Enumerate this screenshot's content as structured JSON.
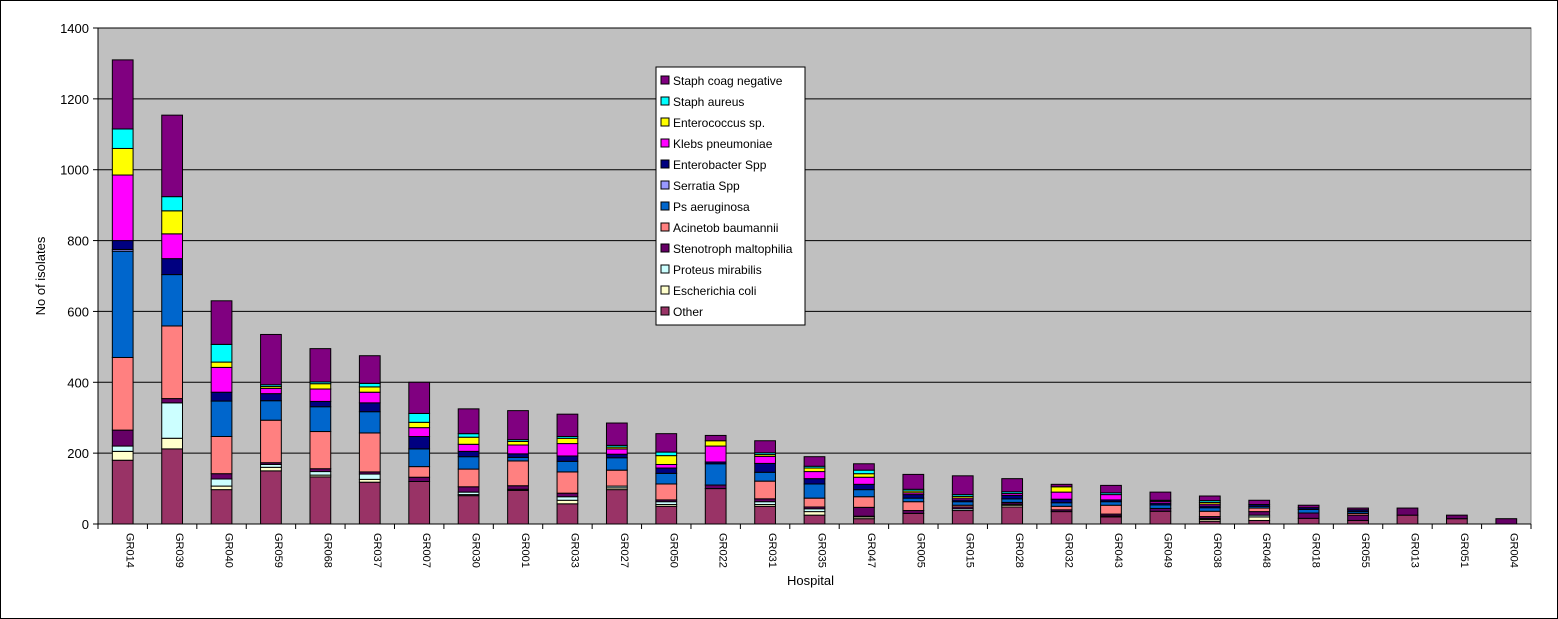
{
  "chart_data": {
    "type": "bar",
    "stacked": true,
    "xlabel": "Hospital",
    "ylabel": "No of isolates",
    "ylim": [
      0,
      1400
    ],
    "yticks": [
      0,
      200,
      400,
      600,
      800,
      1000,
      1200,
      1400
    ],
    "grid": true,
    "legend_position": "top-center",
    "plot_background": "#c0c0c0",
    "categories": [
      "GR014",
      "GR039",
      "GR040",
      "GR059",
      "GR068",
      "GR037",
      "GR007",
      "GR030",
      "GR001",
      "GR033",
      "GR027",
      "GR050",
      "GR022",
      "GR031",
      "GR035",
      "GR047",
      "GR005",
      "GR015",
      "GR028",
      "GR032",
      "GR043",
      "GR049",
      "GR038",
      "GR048",
      "GR018",
      "GR055",
      "GR013",
      "GR051",
      "GR004"
    ],
    "series": [
      {
        "name": "Other",
        "color": "#993366",
        "values": [
          180,
          212,
          97,
          150,
          133,
          118,
          120,
          80,
          95,
          57,
          97,
          50,
          100,
          50,
          25,
          15,
          30,
          38,
          48,
          35,
          20,
          36,
          8,
          10,
          16,
          10,
          25,
          15,
          0
        ]
      },
      {
        "name": "Escherichia coli",
        "color": "#ffffcc",
        "values": [
          25,
          30,
          10,
          10,
          5,
          8,
          0,
          3,
          0,
          10,
          5,
          5,
          0,
          5,
          10,
          5,
          0,
          0,
          5,
          0,
          0,
          0,
          5,
          10,
          0,
          0,
          0,
          0,
          0
        ]
      },
      {
        "name": "Proteus mirabilis",
        "color": "#ccffff",
        "values": [
          15,
          100,
          20,
          8,
          10,
          15,
          0,
          7,
          3,
          10,
          5,
          8,
          0,
          8,
          8,
          2,
          0,
          5,
          3,
          0,
          3,
          0,
          3,
          5,
          0,
          0,
          0,
          0,
          0
        ]
      },
      {
        "name": "Stenotroph maltophilia",
        "color": "#660066",
        "values": [
          45,
          12,
          15,
          5,
          8,
          6,
          12,
          15,
          10,
          10,
          0,
          5,
          10,
          8,
          5,
          25,
          8,
          5,
          5,
          5,
          5,
          8,
          5,
          10,
          15,
          15,
          20,
          10,
          15
        ]
      },
      {
        "name": "Acinetob baumannii",
        "color": "#ff8080",
        "values": [
          205,
          205,
          105,
          120,
          105,
          110,
          30,
          50,
          70,
          60,
          45,
          45,
          0,
          50,
          25,
          30,
          25,
          5,
          0,
          10,
          25,
          0,
          15,
          10,
          0,
          5,
          0,
          0,
          0
        ]
      },
      {
        "name": "Ps aeruginosa",
        "color": "#0066cc",
        "values": [
          300,
          145,
          100,
          55,
          70,
          60,
          50,
          35,
          10,
          30,
          35,
          30,
          60,
          25,
          40,
          20,
          10,
          10,
          10,
          10,
          10,
          10,
          10,
          5,
          10,
          5,
          0,
          0,
          0
        ]
      },
      {
        "name": "Serratia Spp",
        "color": "#9999ff",
        "values": [
          5,
          0,
          0,
          0,
          0,
          0,
          0,
          0,
          0,
          0,
          0,
          0,
          0,
          0,
          0,
          0,
          0,
          0,
          0,
          0,
          0,
          0,
          0,
          0,
          0,
          0,
          0,
          0,
          0
        ]
      },
      {
        "name": "Enterobacter Spp",
        "color": "#000080",
        "values": [
          25,
          45,
          25,
          20,
          15,
          25,
          35,
          15,
          10,
          15,
          10,
          15,
          5,
          25,
          15,
          15,
          10,
          5,
          10,
          10,
          5,
          5,
          5,
          5,
          5,
          5,
          0,
          0,
          0
        ]
      },
      {
        "name": "Klebs pneumoniae",
        "color": "#ff00ff",
        "values": [
          185,
          70,
          70,
          15,
          35,
          30,
          25,
          20,
          25,
          35,
          15,
          10,
          45,
          20,
          20,
          20,
          5,
          5,
          5,
          20,
          15,
          5,
          5,
          0,
          0,
          0,
          0,
          0,
          0
        ]
      },
      {
        "name": "Enterococcus sp.",
        "color": "#ffff00",
        "values": [
          75,
          65,
          15,
          5,
          15,
          15,
          15,
          20,
          10,
          15,
          5,
          25,
          15,
          5,
          10,
          10,
          5,
          5,
          0,
          15,
          0,
          0,
          5,
          0,
          0,
          0,
          0,
          0,
          0
        ]
      },
      {
        "name": "Staph aureus",
        "color": "#00ffff",
        "values": [
          55,
          40,
          50,
          5,
          5,
          10,
          25,
          10,
          5,
          5,
          5,
          10,
          0,
          5,
          5,
          10,
          5,
          5,
          5,
          0,
          5,
          3,
          5,
          0,
          0,
          0,
          0,
          0,
          0
        ]
      },
      {
        "name": "Staph coag negative",
        "color": "#800080",
        "values": [
          195,
          230,
          123,
          142,
          94,
          78,
          88,
          70,
          82,
          63,
          63,
          52,
          15,
          34,
          27,
          18,
          42,
          53,
          37,
          7,
          21,
          23,
          13,
          12,
          7,
          5,
          0,
          0,
          0
        ]
      }
    ]
  }
}
